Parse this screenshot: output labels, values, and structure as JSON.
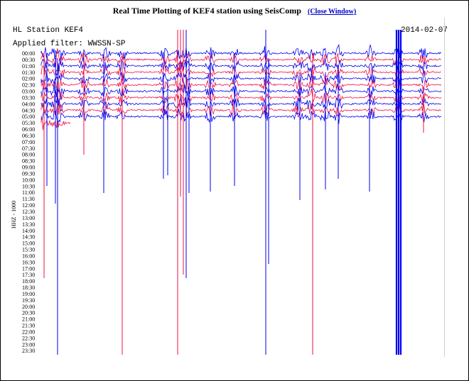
{
  "window": {
    "title": "Real Time Plotting of KEF4 station using SeisComp",
    "close_label": "(Close Window)"
  },
  "plot": {
    "station_label": "HL Station KEF4",
    "date": "2014-02-07",
    "filter_label": "Applied filter: WWSSN-SP",
    "channel_label": "HHZ - 1000",
    "trace_colors": [
      "#0000ee",
      "#ee1144"
    ],
    "time_ticks": [
      "00:00",
      "00:30",
      "01:00",
      "01:30",
      "02:00",
      "02:30",
      "03:00",
      "03:30",
      "04:00",
      "04:30",
      "05:00",
      "05:30",
      "06:00",
      "06:30",
      "07:00",
      "07:30",
      "08:00",
      "08:30",
      "09:00",
      "09:30",
      "10:00",
      "10:30",
      "11:00",
      "11:30",
      "12:00",
      "12:30",
      "13:00",
      "13:30",
      "14:00",
      "14:30",
      "15:00",
      "15:30",
      "16:00",
      "16:30",
      "17:00",
      "17:30",
      "18:00",
      "18:30",
      "19:00",
      "19:30",
      "20:00",
      "20:30",
      "21:00",
      "21:30",
      "22:00",
      "22:30",
      "23:00",
      "23:30"
    ],
    "active_traces": 12
  }
}
